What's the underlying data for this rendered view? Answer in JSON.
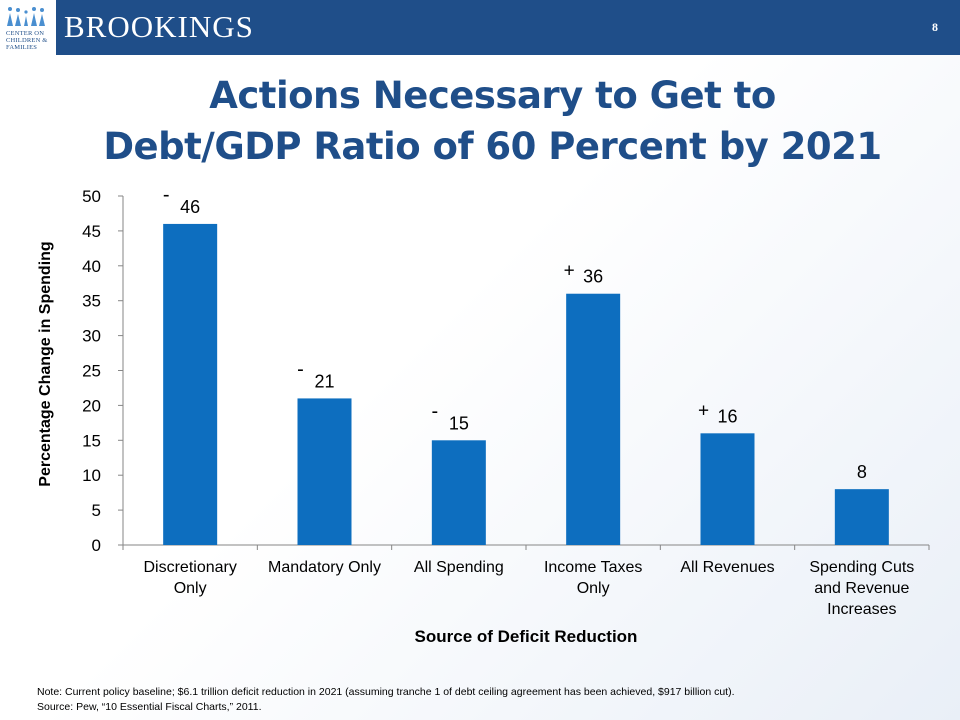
{
  "header": {
    "brand": "BROOKINGS",
    "logo_text": [
      "CENTER ON",
      "CHILDREN &",
      "FAMILIES"
    ],
    "page_number": "8"
  },
  "title_lines": [
    "Actions Necessary to Get to",
    "Debt/GDP Ratio of 60 Percent by 2021"
  ],
  "colors": {
    "header": "#1f4e89",
    "bar": "#0d6ebf",
    "title": "#1f4e89"
  },
  "chart_data": {
    "type": "bar",
    "title": "Actions Necessary to Get to Debt/GDP Ratio of 60 Percent by 2021",
    "xlabel": "Source of Deficit Reduction",
    "ylabel": "Percentage Change in Spending",
    "ylim": [
      0,
      50
    ],
    "yticks": [
      0,
      5,
      10,
      15,
      20,
      25,
      30,
      35,
      40,
      45,
      50
    ],
    "grid": false,
    "legend": "none",
    "categories": [
      [
        "Discretionary",
        "Only"
      ],
      [
        "Mandatory Only"
      ],
      [
        "All Spending"
      ],
      [
        "Income Taxes",
        "Only"
      ],
      [
        "All Revenues"
      ],
      [
        "Spending Cuts",
        "and Revenue",
        "Increases"
      ]
    ],
    "values": [
      46,
      21,
      15,
      36,
      16,
      8
    ],
    "signs": [
      "-",
      "-",
      "-",
      "+",
      "+",
      ""
    ],
    "data_labels": [
      "46",
      "21",
      "15",
      "36",
      "16",
      "8"
    ]
  },
  "notes": [
    "Note: Current  policy baseline; $6.1 trillion deficit reduction in 2021 (assuming tranche  1 of debt ceiling agreement has been achieved, $917 billion cut).",
    "Source: Pew, “10 Essential Fiscal Charts,” 2011."
  ]
}
